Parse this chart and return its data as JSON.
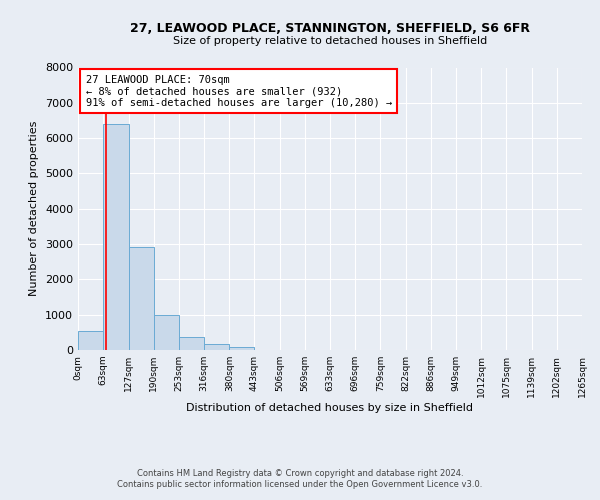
{
  "title1": "27, LEAWOOD PLACE, STANNINGTON, SHEFFIELD, S6 6FR",
  "title2": "Size of property relative to detached houses in Sheffield",
  "xlabel": "Distribution of detached houses by size in Sheffield",
  "ylabel": "Number of detached properties",
  "bin_edges": [
    0,
    63,
    127,
    190,
    253,
    316,
    380,
    443,
    506,
    569,
    633,
    696,
    759,
    822,
    886,
    949,
    1012,
    1075,
    1139,
    1202,
    1265
  ],
  "bin_labels": [
    "0sqm",
    "63sqm",
    "127sqm",
    "190sqm",
    "253sqm",
    "316sqm",
    "380sqm",
    "443sqm",
    "506sqm",
    "569sqm",
    "633sqm",
    "696sqm",
    "759sqm",
    "822sqm",
    "886sqm",
    "949sqm",
    "1012sqm",
    "1075sqm",
    "1139sqm",
    "1202sqm",
    "1265sqm"
  ],
  "bar_heights": [
    550,
    6400,
    2920,
    980,
    380,
    170,
    80,
    0,
    0,
    0,
    0,
    0,
    0,
    0,
    0,
    0,
    0,
    0,
    0,
    0
  ],
  "bar_color": "#c9d9ea",
  "bar_edge_color": "#6aaad4",
  "ylim": [
    0,
    8000
  ],
  "yticks": [
    0,
    1000,
    2000,
    3000,
    4000,
    5000,
    6000,
    7000,
    8000
  ],
  "property_line_x": 70,
  "annotation_line1": "27 LEAWOOD PLACE: 70sqm",
  "annotation_line2": "← 8% of detached houses are smaller (932)",
  "annotation_line3": "91% of semi-detached houses are larger (10,280) →",
  "annotation_box_color": "white",
  "annotation_box_edge": "red",
  "property_line_color": "red",
  "footer1": "Contains HM Land Registry data © Crown copyright and database right 2024.",
  "footer2": "Contains public sector information licensed under the Open Government Licence v3.0.",
  "background_color": "#e8edf4",
  "plot_bg_color": "#e8edf4"
}
